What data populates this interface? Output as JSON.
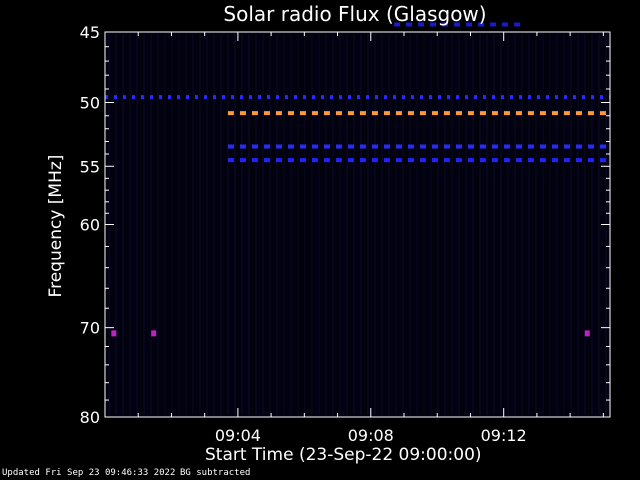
{
  "chart_data": {
    "type": "heatmap",
    "title": "Solar radio Flux (Glasgow)",
    "xlabel": "Start Time (23-Sep-22 09:00:00)",
    "ylabel": "Frequency [MHz]",
    "x_units": "minutes after 09:00:00",
    "xlim": [
      0,
      15.2
    ],
    "ylim": [
      45,
      80
    ],
    "y_scale": "log",
    "y_ticks": [
      45,
      50,
      55,
      60,
      70,
      80
    ],
    "x_ticks": [
      4,
      8,
      12
    ],
    "x_tick_labels": [
      "09:04",
      "09:08",
      "09:12"
    ],
    "bands": [
      {
        "freq": 44.5,
        "x_start": 8.7,
        "x_end": 12.5,
        "color": "#1a1ad0",
        "style": "dash"
      },
      {
        "freq": 49.6,
        "x_start": 0,
        "x_end": 15.2,
        "color": "#2a2aff",
        "style": "dot"
      },
      {
        "freq": 50.8,
        "x_start": 3.7,
        "x_end": 15.2,
        "color": "#ff9a3c",
        "style": "dash"
      },
      {
        "freq": 53.4,
        "x_start": 3.7,
        "x_end": 15.2,
        "color": "#2a2aff",
        "style": "dash"
      },
      {
        "freq": 54.5,
        "x_start": 3.7,
        "x_end": 15.2,
        "color": "#2222ff",
        "style": "dash"
      }
    ],
    "spots": [
      {
        "freq": 70.6,
        "x": 0.25,
        "color": "#c020c0"
      },
      {
        "freq": 70.6,
        "x": 1.45,
        "color": "#c020c0"
      },
      {
        "freq": 70.6,
        "x": 14.5,
        "color": "#c020c0"
      }
    ]
  },
  "footer": {
    "updated": "Updated Fri Sep 23 09:46:33 2022",
    "note": "BG subtracted"
  }
}
